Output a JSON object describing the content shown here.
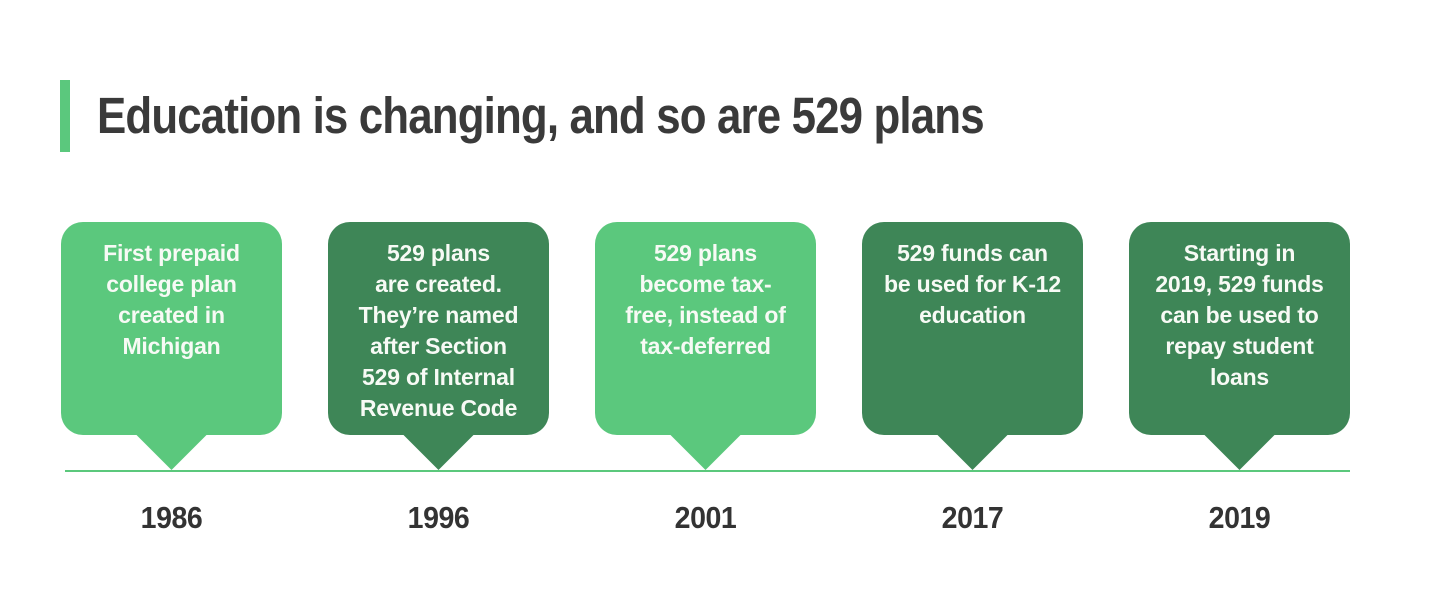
{
  "title": "Education is changing, and so are 529 plans",
  "colors": {
    "light_green": "#5bc87d",
    "dark_green": "#3e8657",
    "title_text": "#3a3a3a",
    "year_text": "#333333",
    "bubble_text": "#f7faf5",
    "timeline_line": "#5bc87c"
  },
  "events": [
    {
      "year": "1986",
      "tone": "light",
      "lines": [
        "First prepaid",
        "college plan",
        "created in",
        "Michigan"
      ],
      "text": "First prepaid college plan created in Michigan"
    },
    {
      "year": "1996",
      "tone": "dark",
      "lines": [
        "529 plans",
        "are created.",
        "They’re named",
        "after Section",
        "529 of Internal",
        "Revenue Code"
      ],
      "text": "529 plans are created. They’re named after Section 529 of Internal Revenue Code"
    },
    {
      "year": "2001",
      "tone": "light",
      "lines": [
        "529 plans",
        "become tax-",
        "free, instead of",
        "tax-deferred"
      ],
      "text": "529 plans become tax-free, instead of tax-deferred"
    },
    {
      "year": "2017",
      "tone": "dark",
      "lines": [
        "529 funds can",
        "be used for K-12",
        "education"
      ],
      "text": "529 funds can be used for K-12 education"
    },
    {
      "year": "2019",
      "tone": "dark",
      "lines": [
        "Starting in",
        "2019, 529 funds",
        "can be used to",
        "repay student",
        "loans"
      ],
      "text": "Starting in 2019, 529 funds can be used to repay student loans"
    }
  ]
}
